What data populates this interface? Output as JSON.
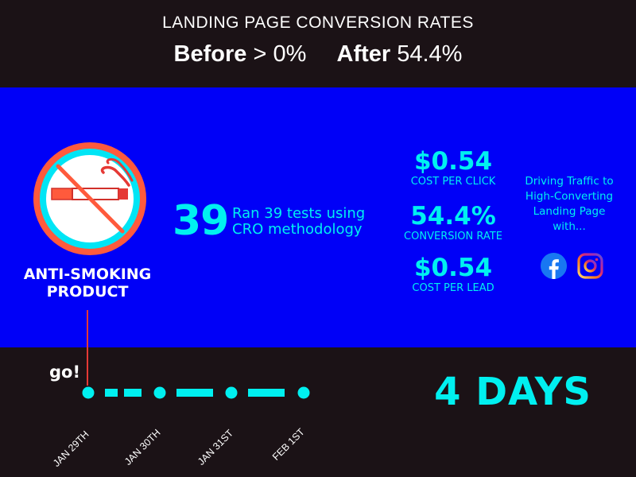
{
  "header": {
    "title": "LANDING PAGE CONVERSION RATES",
    "before_label": "Before",
    "before_value": "> 0%",
    "after_label": "After",
    "after_value": "54.4%"
  },
  "product": {
    "line1": "ANTI-SMOKING",
    "line2": "PRODUCT",
    "icon": "no-smoking-icon"
  },
  "tests": {
    "count": "39",
    "line1": "Ran 39 tests using",
    "line2": "CRO methodology"
  },
  "metrics": [
    {
      "value": "$0.54",
      "label": "COST PER CLICK"
    },
    {
      "value": "54.4%",
      "label": "CONVERSION RATE"
    },
    {
      "value": "$0.54",
      "label": "COST PER LEAD"
    }
  ],
  "traffic": {
    "line1": "Driving Traffic to",
    "line2": "High-Converting",
    "line3": "Landing Page",
    "line4": "with...",
    "icons": [
      "facebook-icon",
      "instagram-icon"
    ]
  },
  "timeline": {
    "start_label": "go!",
    "dates": [
      "JAN 29TH",
      "JAN 30TH",
      "JAN 31ST",
      "FEB 1ST"
    ],
    "duration": "4 DAYS"
  },
  "colors": {
    "band": "#0000f7",
    "accent": "#00f0f0",
    "dark": "#1b1216",
    "red": "#e53935"
  }
}
